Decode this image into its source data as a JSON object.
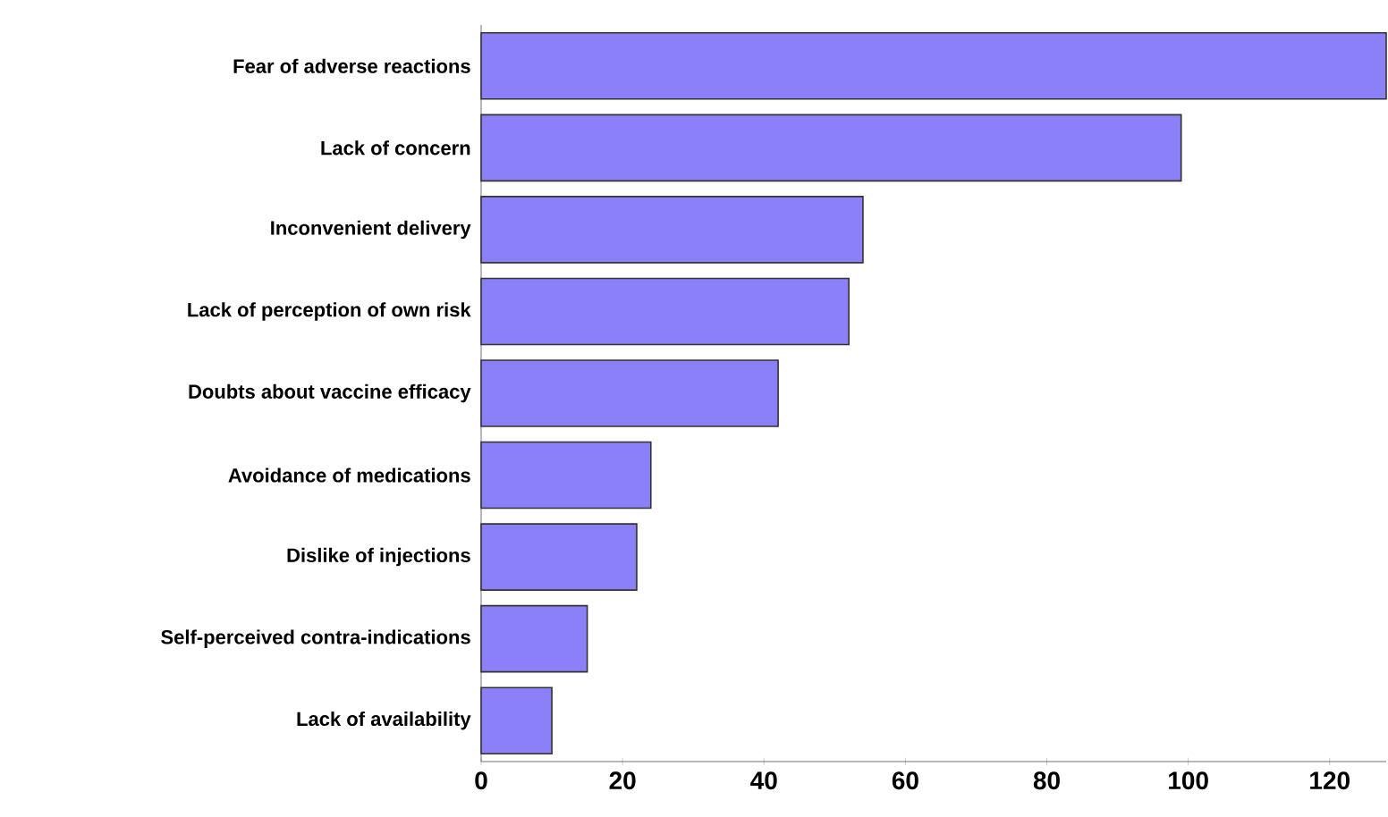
{
  "chart_data": {
    "type": "bar",
    "orientation": "horizontal",
    "categories": [
      "Fear of adverse reactions",
      "Lack of concern",
      "Inconvenient delivery",
      "Lack of perception of own risk",
      "Doubts about vaccine efficacy",
      "Avoidance of medications",
      "Dislike of injections",
      "Self-perceived contra-indications",
      "Lack of availability"
    ],
    "values": [
      128,
      99,
      54,
      52,
      42,
      24,
      22,
      15,
      10
    ],
    "color": "#8c80f8",
    "xlim": [
      0,
      128
    ],
    "xticks": [
      0,
      20,
      40,
      60,
      80,
      100,
      120
    ],
    "grid": false
  }
}
